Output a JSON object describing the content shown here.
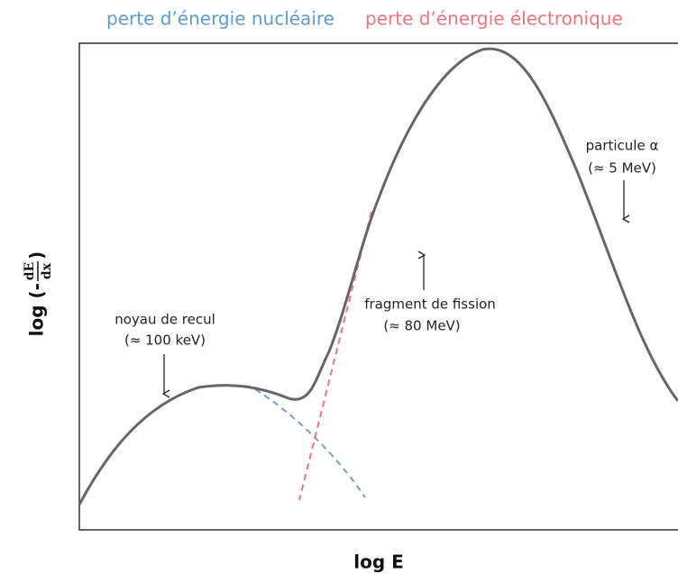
{
  "legend": {
    "nuclear": "perte d’énergie nucléaire",
    "electronic": "perte d’énergie électronique"
  },
  "y_label": {
    "prefix": "log (-",
    "numerator": "dE",
    "denominator": "dx",
    "suffix": ")"
  },
  "x_label": "log E",
  "annotations": [
    {
      "line1": "noyau de recul",
      "line2": "(≈ 100 keV)"
    },
    {
      "line1": "fragment de fission",
      "line2": "(≈ 80 MeV)"
    },
    {
      "line1": "particule α",
      "line2": "(≈ 5 MeV)"
    }
  ]
}
